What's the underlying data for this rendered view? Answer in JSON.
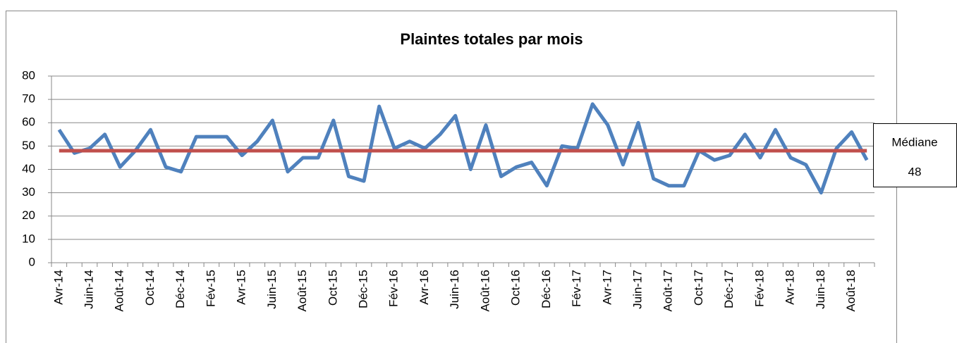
{
  "chart_data": {
    "type": "line",
    "title": "Plaintes totales par mois",
    "categories": [
      "Avr-14",
      null,
      "Juin-14",
      null,
      "Août-14",
      null,
      "Oct-14",
      null,
      "Déc-14",
      null,
      "Fév-15",
      null,
      "Avr-15",
      null,
      "Juin-15",
      null,
      "Août-15",
      null,
      "Oct-15",
      null,
      "Déc-15",
      null,
      "Fév-16",
      null,
      "Avr-16",
      null,
      "Juin-16",
      null,
      "Août-16",
      null,
      "Oct-16",
      null,
      "Déc-16",
      null,
      "Fév-17",
      null,
      "Avr-17",
      null,
      "Juin-17",
      null,
      "Août-17",
      null,
      "Oct-17",
      null,
      "Déc-17",
      null,
      "Fév-18",
      null,
      "Avr-18",
      null,
      "Juin-18",
      null,
      "Août-18",
      null
    ],
    "series": [
      {
        "color": "#4f81bd",
        "values": [
          57,
          47,
          49,
          55,
          41,
          48,
          57,
          41,
          39,
          54,
          54,
          54,
          46,
          52,
          61,
          39,
          45,
          45,
          61,
          37,
          35,
          67,
          49,
          52,
          49,
          55,
          63,
          40,
          59,
          37,
          41,
          43,
          33,
          50,
          49,
          68,
          59,
          42,
          60,
          36,
          33,
          33,
          48,
          44,
          46,
          55,
          45,
          57,
          45,
          42,
          30,
          49,
          56,
          44
        ]
      }
    ],
    "median": {
      "label": "Médiane",
      "value": 48,
      "color": "#c0504d"
    },
    "ylim": [
      0,
      80
    ],
    "yticks": [
      0,
      10,
      20,
      30,
      40,
      50,
      60,
      70,
      80
    ],
    "grid": true
  }
}
